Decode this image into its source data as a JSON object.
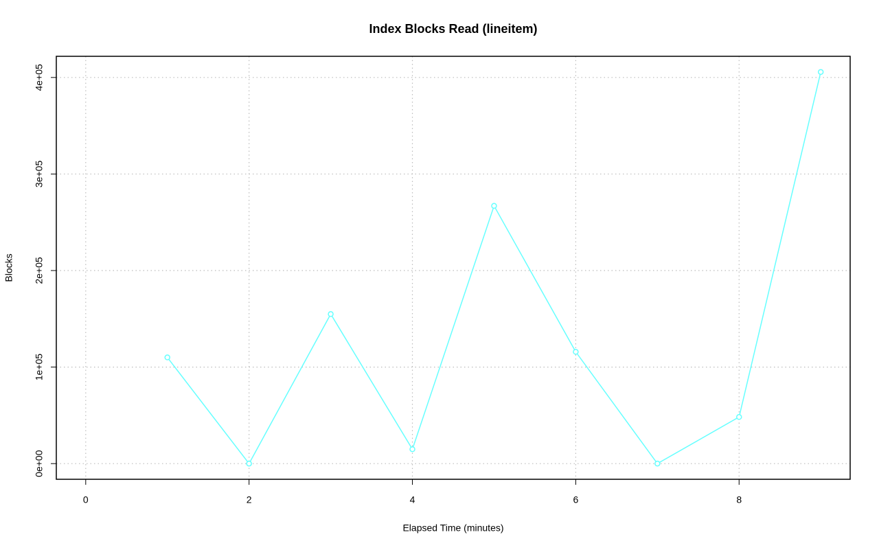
{
  "chart_data": {
    "type": "line",
    "title": "Index Blocks Read (lineitem)",
    "xlabel": "Elapsed Time (minutes)",
    "ylabel": "Blocks",
    "x": [
      1,
      2,
      3,
      4,
      5,
      6,
      7,
      8,
      9
    ],
    "values": [
      110000,
      0,
      154900,
      14900,
      267000,
      115800,
      0,
      48300,
      405700
    ],
    "color": "#66ffff",
    "xlim": [
      -0.36,
      9.36
    ],
    "xticks": [
      0,
      2,
      4,
      6,
      8
    ],
    "ylim": [
      -16228,
      421928
    ],
    "yticks": [
      {
        "value": 0,
        "label": "0e+00"
      },
      {
        "value": 100000,
        "label": "1e+05"
      },
      {
        "value": 200000,
        "label": "2e+05"
      },
      {
        "value": 300000,
        "label": "3e+05"
      },
      {
        "value": 400000,
        "label": "4e+05"
      }
    ],
    "grid": true
  }
}
